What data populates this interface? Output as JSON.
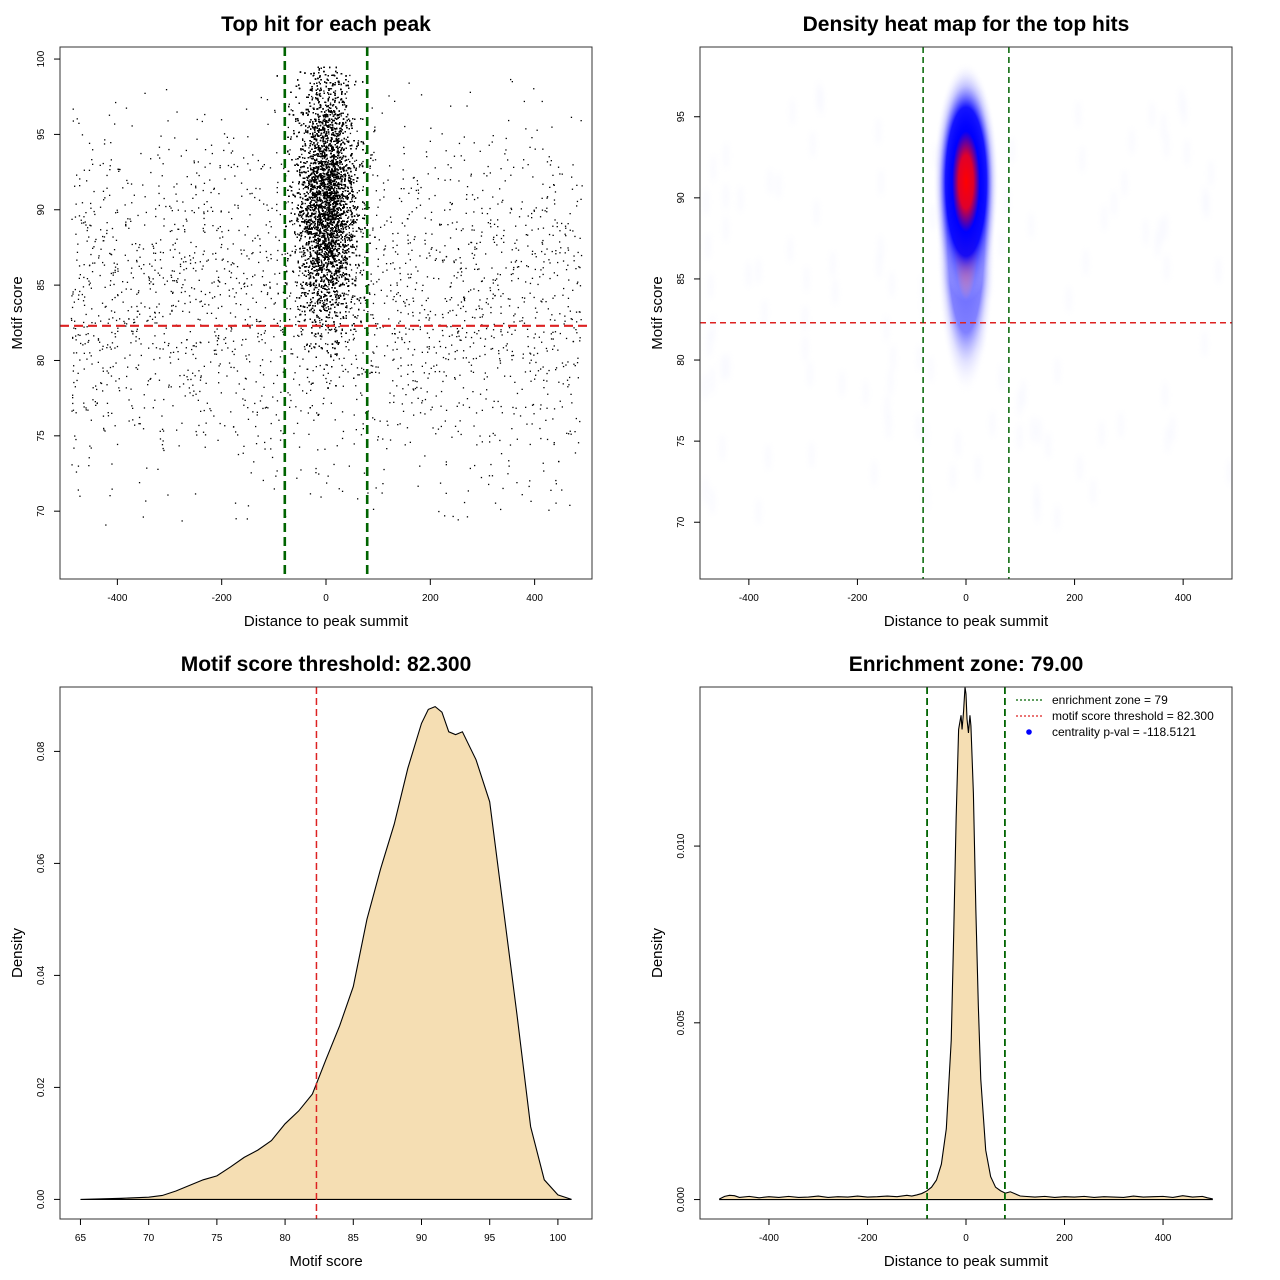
{
  "colors": {
    "threshold_line": "#dd2222",
    "zone_line": "#006400",
    "density_fill": "#f5deb3",
    "points": "#000000",
    "heat_low": "#ffffff",
    "heat_mid": "#0000ff",
    "heat_high": "#ff0000"
  },
  "chart_data": [
    {
      "id": "scatter",
      "type": "scatter",
      "title": "Top hit for each peak",
      "xlabel": "Distance to peak summit",
      "ylabel": "Motif score",
      "xlim": [
        -510,
        510
      ],
      "ylim": [
        65.5,
        100.8
      ],
      "xticks": [
        -400,
        -200,
        0,
        200,
        400
      ],
      "xtick_labels": [
        "-400",
        "-200",
        "0",
        "200",
        "400"
      ],
      "yticks": [
        70,
        75,
        80,
        85,
        90,
        95,
        100
      ],
      "ytick_labels": [
        "70",
        "75",
        "80",
        "85",
        "90",
        "95",
        "100"
      ],
      "threshold_y": 82.3,
      "zone_x": [
        -79,
        79
      ],
      "central_cluster": {
        "x_center": 0,
        "x_sd": 28,
        "y_center": 90.5,
        "y_sd": 4,
        "y_range": [
          72,
          99.5
        ],
        "approx_points": 14000
      },
      "background_points": {
        "x_range": [
          -490,
          490
        ],
        "y_range": [
          69,
          99
        ],
        "approx_points": 2400
      }
    },
    {
      "id": "heatmap",
      "type": "heatmap",
      "title": "Density heat map for the top hits",
      "xlabel": "Distance to peak summit",
      "ylabel": "Motif score",
      "xlim": [
        -490,
        490
      ],
      "ylim": [
        66.5,
        99.3
      ],
      "xticks": [
        -400,
        -200,
        0,
        200,
        400
      ],
      "xtick_labels": [
        "-400",
        "-200",
        "0",
        "200",
        "400"
      ],
      "yticks": [
        70,
        75,
        80,
        85,
        90,
        95
      ],
      "ytick_labels": [
        "70",
        "75",
        "80",
        "85",
        "90",
        "95"
      ],
      "threshold_y": 82.3,
      "zone_x": [
        -79,
        79
      ],
      "density_peak": {
        "x": 0,
        "y": 91
      }
    },
    {
      "id": "score_density",
      "type": "area",
      "title": "Motif score threshold: 82.300",
      "xlabel": "Motif score",
      "ylabel": "Density",
      "xlim": [
        63.5,
        102.5
      ],
      "ylim": [
        -0.0035,
        0.0915
      ],
      "xticks": [
        65,
        70,
        75,
        80,
        85,
        90,
        95,
        100
      ],
      "xtick_labels": [
        "65",
        "70",
        "75",
        "80",
        "85",
        "90",
        "95",
        "100"
      ],
      "yticks": [
        0,
        0.02,
        0.04,
        0.06,
        0.08
      ],
      "ytick_labels": [
        "0.00",
        "0.02",
        "0.04",
        "0.06",
        "0.08"
      ],
      "threshold_x": 82.3,
      "x": [
        65,
        68,
        70,
        71,
        72,
        73,
        74,
        75,
        76,
        77,
        78,
        79,
        80,
        81,
        82,
        83,
        84,
        85,
        86,
        87,
        88,
        89,
        90,
        90.5,
        91,
        91.5,
        92,
        92.5,
        93,
        94,
        95,
        96,
        97,
        98,
        99,
        100,
        101
      ],
      "y": [
        0,
        0.0002,
        0.0004,
        0.0007,
        0.0015,
        0.0025,
        0.0035,
        0.0042,
        0.0058,
        0.0075,
        0.0088,
        0.0105,
        0.0135,
        0.0158,
        0.0188,
        0.025,
        0.031,
        0.038,
        0.05,
        0.059,
        0.067,
        0.077,
        0.085,
        0.0875,
        0.088,
        0.087,
        0.0835,
        0.083,
        0.0835,
        0.0785,
        0.071,
        0.052,
        0.033,
        0.013,
        0.0035,
        0.0008,
        0
      ]
    },
    {
      "id": "distance_density",
      "type": "area",
      "title": "Enrichment zone: 79.00",
      "xlabel": "Distance to peak summit",
      "ylabel": "Density",
      "xlim": [
        -540,
        540
      ],
      "ylim": [
        -0.00055,
        0.0145
      ],
      "xticks": [
        -400,
        -200,
        0,
        200,
        400
      ],
      "xtick_labels": [
        "-400",
        "-200",
        "0",
        "200",
        "400"
      ],
      "yticks": [
        0,
        0.005,
        0.01
      ],
      "ytick_labels": [
        "0.000",
        "0.005",
        "0.010"
      ],
      "zone_x": [
        -79,
        79
      ],
      "x": [
        -500,
        -490,
        -480,
        -470,
        -460,
        -440,
        -420,
        -400,
        -380,
        -360,
        -340,
        -320,
        -300,
        -280,
        -260,
        -240,
        -220,
        -200,
        -180,
        -160,
        -140,
        -120,
        -110,
        -100,
        -90,
        -80,
        -70,
        -60,
        -50,
        -40,
        -30,
        -25,
        -20,
        -15,
        -10,
        -8,
        -5,
        -2,
        0,
        2,
        5,
        8,
        10,
        15,
        20,
        25,
        30,
        40,
        50,
        60,
        70,
        80,
        90,
        100,
        110,
        120,
        140,
        160,
        180,
        200,
        220,
        240,
        260,
        280,
        300,
        320,
        340,
        360,
        380,
        400,
        420,
        440,
        460,
        480,
        490,
        500
      ],
      "y": [
        2e-05,
        9e-05,
        0.00012,
        0.00011,
        6e-05,
        9e-05,
        5e-05,
        8e-05,
        6e-05,
        9e-05,
        6e-05,
        7e-05,
        0.0001,
        6e-05,
        8e-05,
        7e-05,
        0.0001,
        7e-05,
        8e-05,
        0.0001,
        8e-05,
        0.00012,
        0.0001,
        0.00013,
        0.00017,
        0.00024,
        0.00035,
        0.00055,
        0.001,
        0.002,
        0.0045,
        0.0075,
        0.0108,
        0.0133,
        0.0137,
        0.0133,
        0.0138,
        0.0145,
        0.0143,
        0.0136,
        0.0132,
        0.0137,
        0.0134,
        0.0115,
        0.0082,
        0.0055,
        0.0034,
        0.0014,
        0.00065,
        0.00035,
        0.00025,
        0.00018,
        0.00022,
        0.00016,
        0.0001,
        9e-05,
        7e-05,
        9e-05,
        6e-05,
        8e-05,
        7e-05,
        9e-05,
        6e-05,
        8e-05,
        7e-05,
        6e-05,
        0.0001,
        7e-05,
        8e-05,
        9e-05,
        6e-05,
        0.00011,
        7e-05,
        9e-05,
        5e-05,
        2e-05
      ],
      "legend": {
        "position": "top-right",
        "entries": [
          {
            "label": "enrichment zone = 79",
            "style": "dotted",
            "color": "#006400"
          },
          {
            "label": "motif score threshold = 82.300",
            "style": "dotted",
            "color": "#dd2222"
          },
          {
            "label": "centrality p-val = -118.5121",
            "style": "point",
            "color": "#0000ff"
          }
        ]
      }
    }
  ]
}
